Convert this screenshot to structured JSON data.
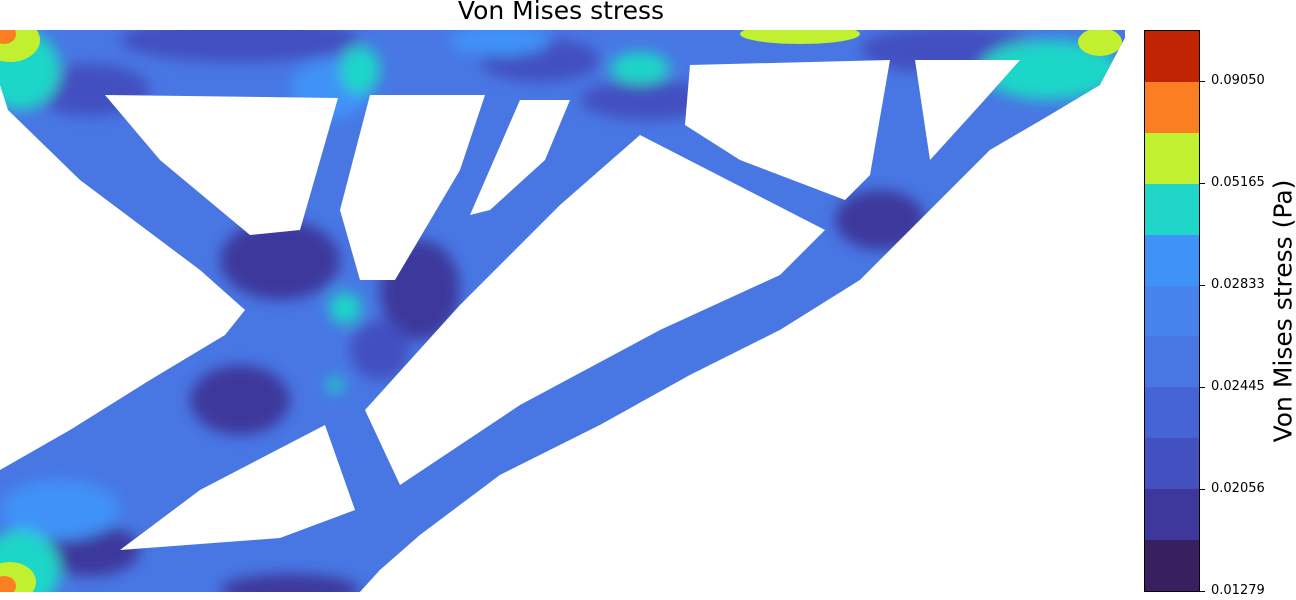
{
  "chart_data": {
    "type": "heatmap",
    "title": "Von Mises stress",
    "colorbar": {
      "label": "Von Mises stress (Pa)",
      "range": [
        0.01279,
        0.10343
      ],
      "tick_labels": [
        "0.09050",
        "0.05165",
        "0.02833",
        "0.02445",
        "0.02056",
        "0.01279"
      ],
      "tick_values": [
        0.0905,
        0.05165,
        0.02833,
        0.02445,
        0.02056,
        0.01279
      ],
      "levels": [
        {
          "color": "#38205f"
        },
        {
          "color": "#3e379c"
        },
        {
          "color": "#4350c0"
        },
        {
          "color": "#4564d5"
        },
        {
          "color": "#4877e4"
        },
        {
          "color": "#4683ee"
        },
        {
          "color": "#3f92f8"
        },
        {
          "color": "#1fd6c8"
        },
        {
          "color": "#c0f030"
        },
        {
          "color": "#fb7f22"
        },
        {
          "color": "#c22302"
        }
      ]
    },
    "x_axis": "hidden",
    "y_axis": "hidden",
    "grid": false
  }
}
